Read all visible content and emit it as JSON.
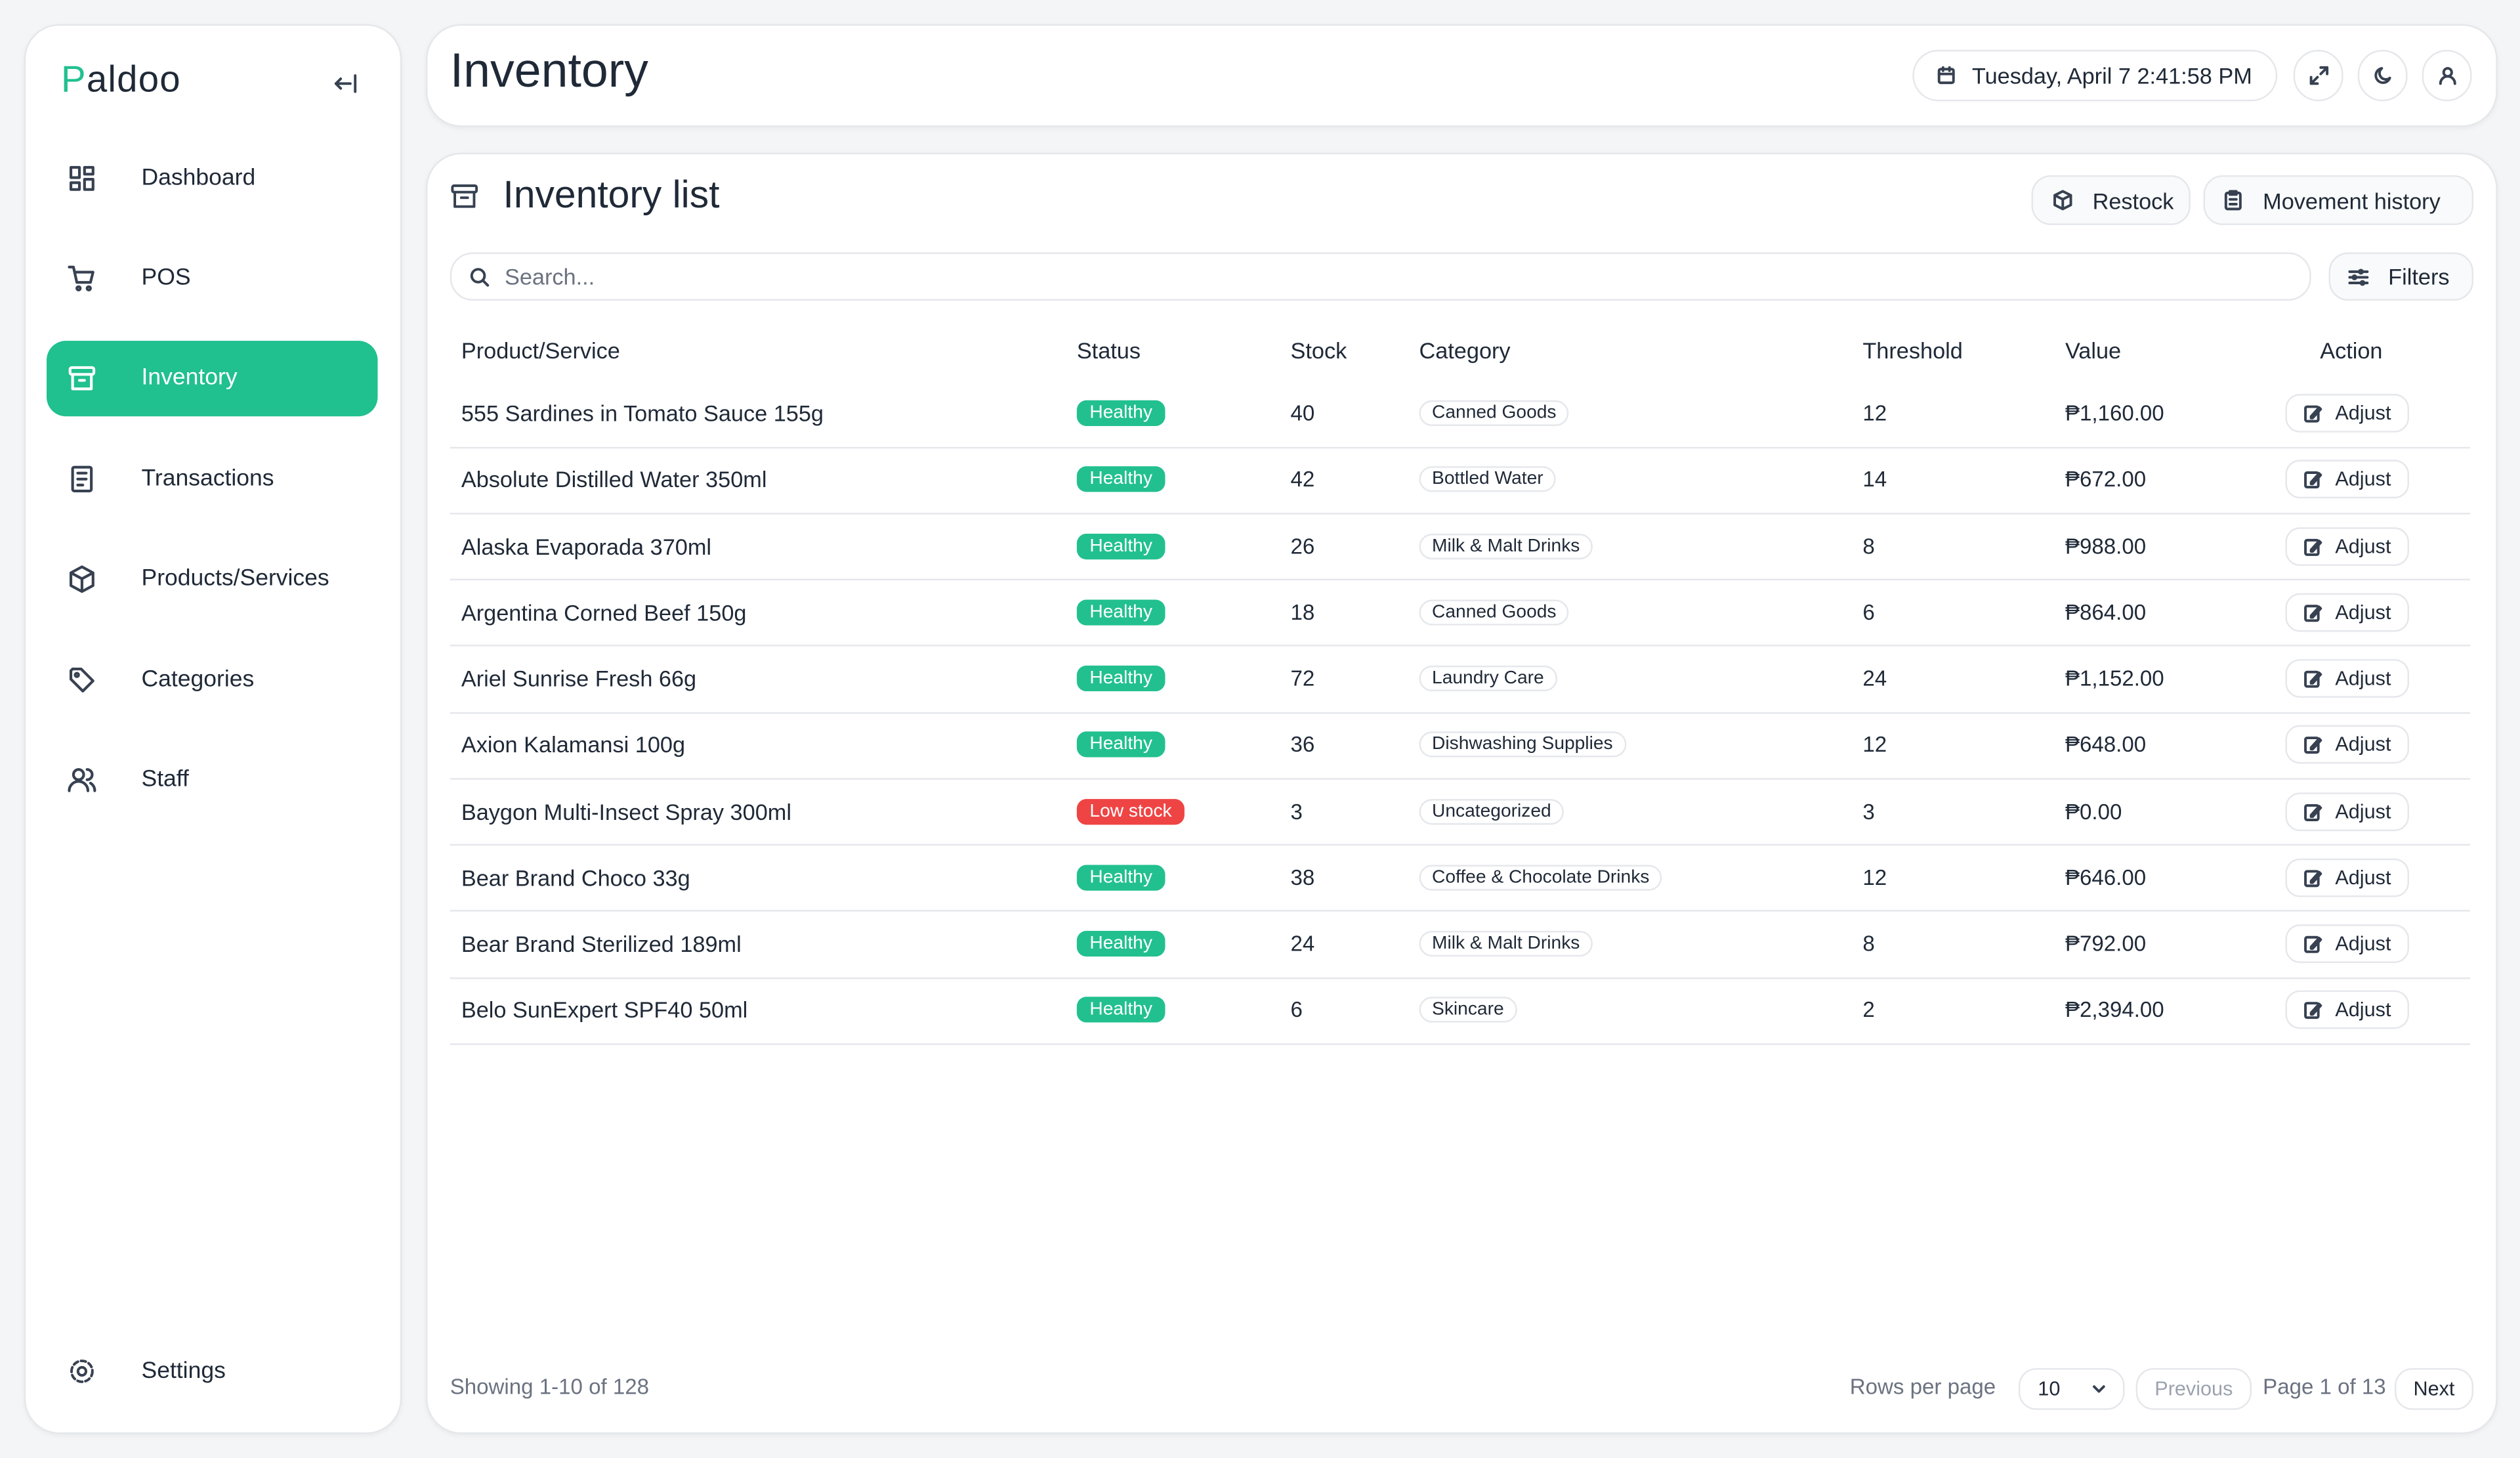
{
  "brand": "Paldoo",
  "nav": [
    {
      "label": "Dashboard"
    },
    {
      "label": "POS"
    },
    {
      "label": "Inventory",
      "active": true
    },
    {
      "label": "Transactions"
    },
    {
      "label": "Products/Services"
    },
    {
      "label": "Categories"
    },
    {
      "label": "Staff"
    }
  ],
  "settings": "Settings",
  "header": {
    "title": "Inventory",
    "datetime": "Tuesday, April 7 2:41:58 PM"
  },
  "panel": {
    "title": "Inventory list",
    "actions": [
      "Restock",
      "Movement history"
    ],
    "search_placeholder": "Search...",
    "filters": "Filters"
  },
  "status_colors": {
    "Healthy": "#22c08f",
    "Low stock": "#ef4444"
  },
  "table": {
    "columns": [
      "Product/Service",
      "Status",
      "Stock",
      "Category",
      "Threshold",
      "Value",
      "Action"
    ],
    "rows": [
      [
        "555 Sardines in Tomato Sauce 155g",
        "Healthy",
        40,
        "Canned Goods",
        12,
        "₱1,160.00",
        "Adjust"
      ],
      [
        "Absolute Distilled Water 350ml",
        "Healthy",
        42,
        "Bottled Water",
        14,
        "₱672.00",
        "Adjust"
      ],
      [
        "Alaska Evaporada 370ml",
        "Healthy",
        26,
        "Milk & Malt Drinks",
        8,
        "₱988.00",
        "Adjust"
      ],
      [
        "Argentina Corned Beef 150g",
        "Healthy",
        18,
        "Canned Goods",
        6,
        "₱864.00",
        "Adjust"
      ],
      [
        "Ariel Sunrise Fresh 66g",
        "Healthy",
        72,
        "Laundry Care",
        24,
        "₱1,152.00",
        "Adjust"
      ],
      [
        "Axion Kalamansi 100g",
        "Healthy",
        36,
        "Dishwashing Supplies",
        12,
        "₱648.00",
        "Adjust"
      ],
      [
        "Baygon Multi-Insect Spray 300ml",
        "Low stock",
        3,
        "Uncategorized",
        3,
        "₱0.00",
        "Adjust"
      ],
      [
        "Bear Brand Choco 33g",
        "Healthy",
        38,
        "Coffee & Chocolate Drinks",
        12,
        "₱646.00",
        "Adjust"
      ],
      [
        "Bear Brand Sterilized 189ml",
        "Healthy",
        24,
        "Milk & Malt Drinks",
        8,
        "₱792.00",
        "Adjust"
      ],
      [
        "Belo SunExpert SPF40 50ml",
        "Healthy",
        6,
        "Skincare",
        2,
        "₱2,394.00",
        "Adjust"
      ]
    ]
  },
  "footer": {
    "showing": "Showing 1-10 of 128",
    "rows_per_page_label": "Rows per page",
    "rows_per_page": "10",
    "previous": "Previous",
    "page": "Page 1 of 13",
    "next": "Next"
  }
}
